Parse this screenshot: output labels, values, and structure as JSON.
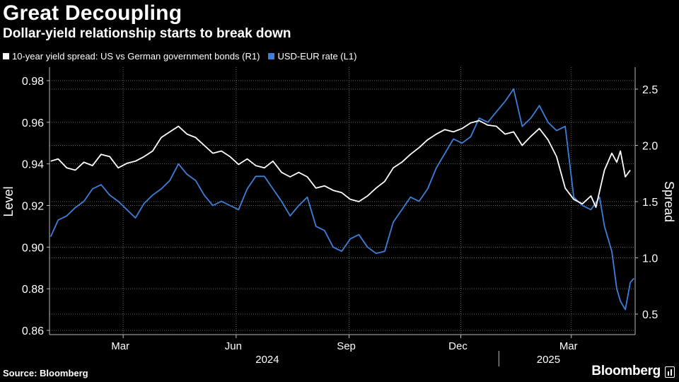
{
  "header": {
    "title": "Great Decoupling",
    "subtitle": "Dollar-yield relationship starts to break down"
  },
  "legend": [
    {
      "label": "10-year yield spread: US vs German government bonds (R1)",
      "color": "#ffffff"
    },
    {
      "label": "USD-EUR rate (L1)",
      "color": "#3d7fd9"
    }
  ],
  "footer": {
    "source": "Source: Bloomberg",
    "brand": "Bloomberg"
  },
  "chart_data": {
    "type": "line",
    "xlim": [
      "2024-01-01",
      "2025-04-22"
    ],
    "x_ticks": [
      {
        "label": "Mar",
        "date": "2024-03-01"
      },
      {
        "label": "Jun",
        "date": "2024-06-01"
      },
      {
        "label": "Sep",
        "date": "2024-09-01"
      },
      {
        "label": "Dec",
        "date": "2024-12-01"
      },
      {
        "label": "Mar",
        "date": "2025-03-01"
      }
    ],
    "years": [
      {
        "label": "2024",
        "date": "2024-07-01"
      },
      {
        "label": "2025",
        "date": "2025-02-15"
      }
    ],
    "year_divider": "2025-01-01",
    "left_axis": {
      "label": "Level",
      "min": 0.86,
      "max": 0.98,
      "ticks": [
        0.86,
        0.88,
        0.9,
        0.92,
        0.94,
        0.96,
        0.98
      ]
    },
    "right_axis": {
      "label": "Spread",
      "min": 0.5,
      "max": 2.5,
      "ticks": [
        0.5,
        1.0,
        1.5,
        2.0,
        2.5
      ],
      "range": [
        0.35,
        2.7
      ]
    },
    "series": [
      {
        "name": "10-year yield spread: US vs German government bonds (R1)",
        "axis": "right",
        "color": "#ffffff",
        "points": [
          [
            "2024-01-02",
            1.86
          ],
          [
            "2024-01-08",
            1.88
          ],
          [
            "2024-01-15",
            1.8
          ],
          [
            "2024-01-22",
            1.78
          ],
          [
            "2024-01-29",
            1.85
          ],
          [
            "2024-02-05",
            1.82
          ],
          [
            "2024-02-12",
            1.92
          ],
          [
            "2024-02-19",
            1.9
          ],
          [
            "2024-02-26",
            1.8
          ],
          [
            "2024-03-04",
            1.84
          ],
          [
            "2024-03-11",
            1.86
          ],
          [
            "2024-03-18",
            1.9
          ],
          [
            "2024-03-25",
            1.95
          ],
          [
            "2024-04-01",
            2.07
          ],
          [
            "2024-04-08",
            2.12
          ],
          [
            "2024-04-15",
            2.17
          ],
          [
            "2024-04-22",
            2.1
          ],
          [
            "2024-04-29",
            2.07
          ],
          [
            "2024-05-06",
            2.0
          ],
          [
            "2024-05-13",
            1.93
          ],
          [
            "2024-05-20",
            1.95
          ],
          [
            "2024-05-27",
            1.9
          ],
          [
            "2024-06-03",
            1.83
          ],
          [
            "2024-06-10",
            1.88
          ],
          [
            "2024-06-17",
            1.82
          ],
          [
            "2024-06-24",
            1.8
          ],
          [
            "2024-07-01",
            1.86
          ],
          [
            "2024-07-08",
            1.76
          ],
          [
            "2024-07-15",
            1.72
          ],
          [
            "2024-07-22",
            1.76
          ],
          [
            "2024-07-29",
            1.72
          ],
          [
            "2024-08-05",
            1.62
          ],
          [
            "2024-08-12",
            1.64
          ],
          [
            "2024-08-19",
            1.6
          ],
          [
            "2024-08-26",
            1.58
          ],
          [
            "2024-09-02",
            1.52
          ],
          [
            "2024-09-09",
            1.5
          ],
          [
            "2024-09-16",
            1.55
          ],
          [
            "2024-09-23",
            1.62
          ],
          [
            "2024-09-30",
            1.68
          ],
          [
            "2024-10-07",
            1.8
          ],
          [
            "2024-10-14",
            1.85
          ],
          [
            "2024-10-21",
            1.92
          ],
          [
            "2024-10-28",
            1.98
          ],
          [
            "2024-11-04",
            2.05
          ],
          [
            "2024-11-11",
            2.1
          ],
          [
            "2024-11-18",
            2.14
          ],
          [
            "2024-11-25",
            2.12
          ],
          [
            "2024-12-02",
            2.15
          ],
          [
            "2024-12-09",
            2.2
          ],
          [
            "2024-12-16",
            2.22
          ],
          [
            "2024-12-23",
            2.18
          ],
          [
            "2024-12-30",
            2.17
          ],
          [
            "2025-01-06",
            2.1
          ],
          [
            "2025-01-13",
            2.12
          ],
          [
            "2025-01-20",
            2.0
          ],
          [
            "2025-01-27",
            2.08
          ],
          [
            "2025-02-03",
            2.15
          ],
          [
            "2025-02-10",
            2.05
          ],
          [
            "2025-02-17",
            1.9
          ],
          [
            "2025-02-24",
            1.62
          ],
          [
            "2025-03-03",
            1.52
          ],
          [
            "2025-03-10",
            1.48
          ],
          [
            "2025-03-17",
            1.55
          ],
          [
            "2025-03-21",
            1.45
          ],
          [
            "2025-03-28",
            1.78
          ],
          [
            "2025-04-03",
            1.93
          ],
          [
            "2025-04-07",
            1.85
          ],
          [
            "2025-04-10",
            1.95
          ],
          [
            "2025-04-14",
            1.72
          ],
          [
            "2025-04-18",
            1.78
          ]
        ]
      },
      {
        "name": "USD-EUR rate (L1)",
        "axis": "left",
        "color": "#3d7fd9",
        "points": [
          [
            "2024-01-02",
            0.905
          ],
          [
            "2024-01-08",
            0.913
          ],
          [
            "2024-01-15",
            0.915
          ],
          [
            "2024-01-22",
            0.919
          ],
          [
            "2024-01-29",
            0.922
          ],
          [
            "2024-02-05",
            0.928
          ],
          [
            "2024-02-12",
            0.93
          ],
          [
            "2024-02-19",
            0.925
          ],
          [
            "2024-02-26",
            0.922
          ],
          [
            "2024-03-04",
            0.918
          ],
          [
            "2024-03-11",
            0.914
          ],
          [
            "2024-03-18",
            0.921
          ],
          [
            "2024-03-25",
            0.925
          ],
          [
            "2024-04-01",
            0.928
          ],
          [
            "2024-04-08",
            0.932
          ],
          [
            "2024-04-15",
            0.94
          ],
          [
            "2024-04-22",
            0.935
          ],
          [
            "2024-04-29",
            0.932
          ],
          [
            "2024-05-06",
            0.925
          ],
          [
            "2024-05-13",
            0.92
          ],
          [
            "2024-05-20",
            0.922
          ],
          [
            "2024-05-27",
            0.92
          ],
          [
            "2024-06-03",
            0.918
          ],
          [
            "2024-06-10",
            0.928
          ],
          [
            "2024-06-17",
            0.934
          ],
          [
            "2024-06-24",
            0.934
          ],
          [
            "2024-07-01",
            0.928
          ],
          [
            "2024-07-08",
            0.922
          ],
          [
            "2024-07-15",
            0.915
          ],
          [
            "2024-07-22",
            0.92
          ],
          [
            "2024-07-29",
            0.924
          ],
          [
            "2024-08-05",
            0.91
          ],
          [
            "2024-08-12",
            0.908
          ],
          [
            "2024-08-19",
            0.9
          ],
          [
            "2024-08-26",
            0.898
          ],
          [
            "2024-09-02",
            0.904
          ],
          [
            "2024-09-09",
            0.906
          ],
          [
            "2024-09-16",
            0.9
          ],
          [
            "2024-09-23",
            0.897
          ],
          [
            "2024-09-30",
            0.898
          ],
          [
            "2024-10-07",
            0.912
          ],
          [
            "2024-10-14",
            0.918
          ],
          [
            "2024-10-21",
            0.924
          ],
          [
            "2024-10-28",
            0.922
          ],
          [
            "2024-11-04",
            0.928
          ],
          [
            "2024-11-11",
            0.938
          ],
          [
            "2024-11-18",
            0.945
          ],
          [
            "2024-11-25",
            0.952
          ],
          [
            "2024-12-02",
            0.95
          ],
          [
            "2024-12-09",
            0.953
          ],
          [
            "2024-12-16",
            0.962
          ],
          [
            "2024-12-23",
            0.96
          ],
          [
            "2024-12-30",
            0.965
          ],
          [
            "2025-01-06",
            0.97
          ],
          [
            "2025-01-13",
            0.976
          ],
          [
            "2025-01-20",
            0.958
          ],
          [
            "2025-01-27",
            0.962
          ],
          [
            "2025-02-03",
            0.968
          ],
          [
            "2025-02-10",
            0.96
          ],
          [
            "2025-02-17",
            0.956
          ],
          [
            "2025-02-24",
            0.958
          ],
          [
            "2025-03-03",
            0.924
          ],
          [
            "2025-03-10",
            0.92
          ],
          [
            "2025-03-17",
            0.918
          ],
          [
            "2025-03-24",
            0.924
          ],
          [
            "2025-03-28",
            0.91
          ],
          [
            "2025-04-03",
            0.898
          ],
          [
            "2025-04-07",
            0.88
          ],
          [
            "2025-04-10",
            0.874
          ],
          [
            "2025-04-14",
            0.87
          ],
          [
            "2025-04-18",
            0.883
          ],
          [
            "2025-04-21",
            0.885
          ]
        ]
      }
    ]
  }
}
